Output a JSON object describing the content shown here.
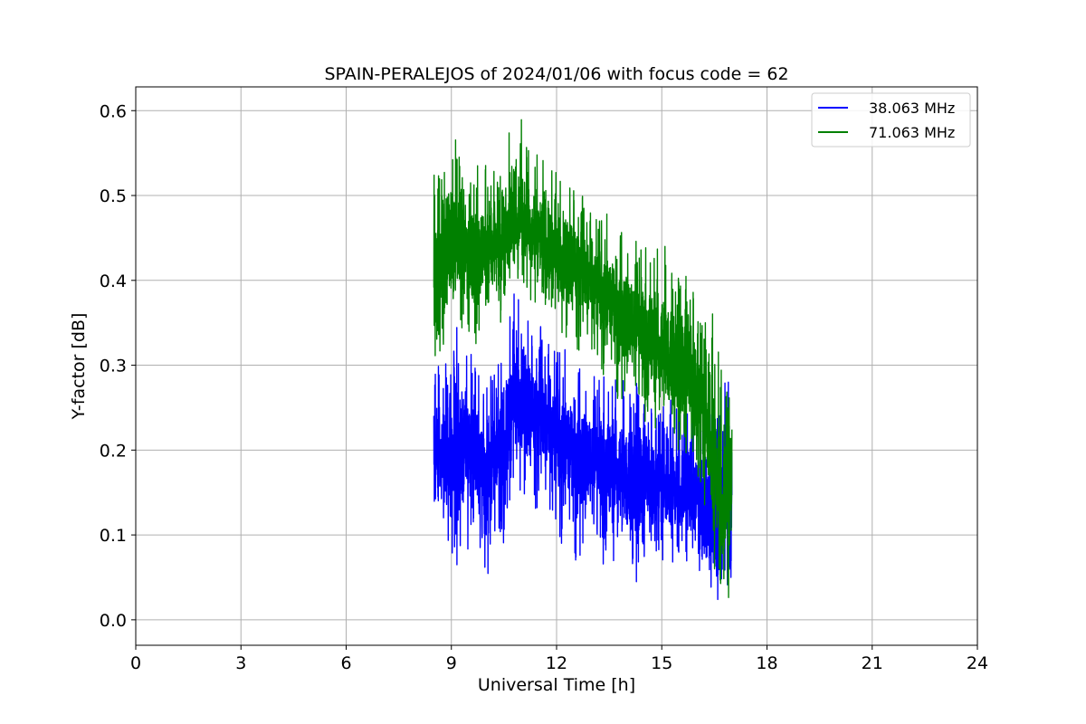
{
  "chart_data": {
    "type": "line",
    "title": "SPAIN-PERALEJOS of 2024/01/06 with focus code = 62",
    "xlabel": "Universal Time [h]",
    "ylabel": "Y-factor [dB]",
    "xlim": [
      0,
      24
    ],
    "ylim": [
      -0.03,
      0.628
    ],
    "xticks": [
      0,
      3,
      6,
      9,
      12,
      15,
      18,
      21,
      24
    ],
    "yticks": [
      0.0,
      0.1,
      0.2,
      0.3,
      0.4,
      0.5,
      0.6
    ],
    "ytick_labels": [
      "0.0",
      "0.1",
      "0.2",
      "0.3",
      "0.4",
      "0.5",
      "0.6"
    ],
    "grid": true,
    "legend": "top-right",
    "series": [
      {
        "name": "38.063 MHz",
        "color": "#0000ff",
        "x": [
          8.5,
          8.75,
          9.0,
          9.25,
          9.5,
          9.75,
          10.0,
          10.25,
          10.5,
          10.75,
          11.0,
          11.25,
          11.5,
          11.75,
          12.0,
          12.25,
          12.5,
          12.75,
          13.0,
          13.25,
          13.5,
          13.75,
          14.0,
          14.25,
          14.5,
          14.75,
          15.0,
          15.25,
          15.5,
          15.75,
          16.0,
          16.25,
          16.5,
          16.75,
          17.0
        ],
        "mid": [
          0.19,
          0.2,
          0.2,
          0.21,
          0.2,
          0.19,
          0.18,
          0.19,
          0.21,
          0.26,
          0.27,
          0.25,
          0.24,
          0.23,
          0.22,
          0.21,
          0.2,
          0.2,
          0.19,
          0.19,
          0.18,
          0.18,
          0.17,
          0.17,
          0.17,
          0.16,
          0.16,
          0.16,
          0.15,
          0.15,
          0.14,
          0.13,
          0.11,
          0.12,
          0.15
        ],
        "low": [
          0.09,
          0.08,
          0.07,
          0.06,
          0.07,
          0.06,
          0.03,
          0.05,
          0.06,
          0.13,
          0.15,
          0.13,
          0.12,
          0.1,
          0.08,
          0.07,
          0.07,
          0.07,
          0.08,
          0.06,
          0.06,
          0.06,
          0.05,
          0.03,
          0.06,
          0.07,
          0.07,
          0.06,
          0.06,
          0.07,
          0.06,
          0.04,
          0.02,
          0.03,
          0.05
        ],
        "high": [
          0.3,
          0.32,
          0.34,
          0.37,
          0.33,
          0.29,
          0.3,
          0.3,
          0.31,
          0.39,
          0.38,
          0.36,
          0.35,
          0.34,
          0.33,
          0.32,
          0.31,
          0.31,
          0.3,
          0.3,
          0.29,
          0.29,
          0.28,
          0.29,
          0.28,
          0.27,
          0.27,
          0.26,
          0.25,
          0.26,
          0.25,
          0.23,
          0.28,
          0.28,
          0.28
        ]
      },
      {
        "name": "71.063 MHz",
        "color": "#008000",
        "x": [
          8.5,
          8.75,
          9.0,
          9.25,
          9.5,
          9.75,
          10.0,
          10.25,
          10.5,
          10.75,
          11.0,
          11.25,
          11.5,
          11.75,
          12.0,
          12.25,
          12.5,
          12.75,
          13.0,
          13.25,
          13.5,
          13.75,
          14.0,
          14.25,
          14.5,
          14.75,
          15.0,
          15.25,
          15.5,
          15.75,
          16.0,
          16.25,
          16.5,
          16.75,
          17.0
        ],
        "mid": [
          0.42,
          0.43,
          0.44,
          0.44,
          0.43,
          0.43,
          0.44,
          0.44,
          0.45,
          0.47,
          0.47,
          0.46,
          0.45,
          0.44,
          0.43,
          0.43,
          0.42,
          0.41,
          0.4,
          0.39,
          0.38,
          0.37,
          0.36,
          0.35,
          0.34,
          0.33,
          0.32,
          0.31,
          0.3,
          0.29,
          0.27,
          0.24,
          0.18,
          0.13,
          0.17
        ],
        "low": [
          0.3,
          0.31,
          0.33,
          0.34,
          0.33,
          0.32,
          0.34,
          0.35,
          0.35,
          0.38,
          0.39,
          0.37,
          0.36,
          0.35,
          0.34,
          0.33,
          0.32,
          0.3,
          0.29,
          0.28,
          0.27,
          0.26,
          0.25,
          0.24,
          0.23,
          0.22,
          0.21,
          0.2,
          0.19,
          0.18,
          0.16,
          0.13,
          0.05,
          0.0,
          0.04
        ],
        "high": [
          0.54,
          0.55,
          0.59,
          0.56,
          0.55,
          0.56,
          0.55,
          0.54,
          0.56,
          0.6,
          0.59,
          0.56,
          0.55,
          0.54,
          0.53,
          0.51,
          0.53,
          0.5,
          0.49,
          0.48,
          0.48,
          0.47,
          0.47,
          0.46,
          0.45,
          0.44,
          0.45,
          0.43,
          0.41,
          0.45,
          0.39,
          0.37,
          0.36,
          0.28,
          0.28
        ]
      }
    ]
  }
}
